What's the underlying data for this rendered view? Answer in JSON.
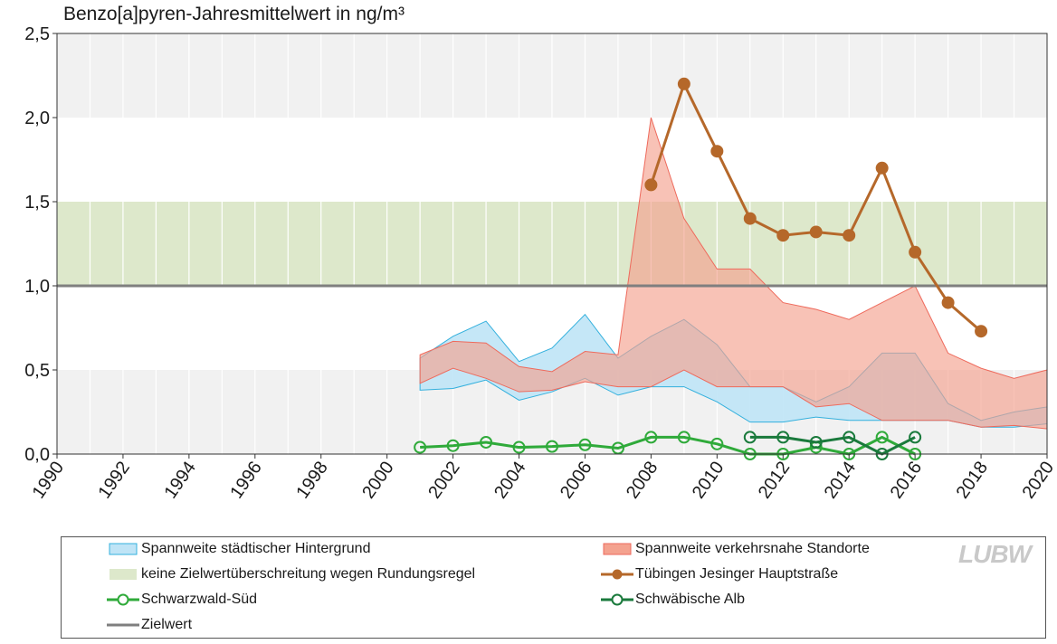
{
  "chart_data": {
    "type": "line",
    "title": "Benzo[a]pyren-Jahresmittelwert in ng/m³",
    "ylim": [
      0,
      2.5
    ],
    "xlim": [
      1990,
      2020
    ],
    "y_ticks": [
      "0,0",
      "0,5",
      "1,0",
      "1,5",
      "2,0",
      "2,5"
    ],
    "x_ticks": [
      "1990",
      "1992",
      "1994",
      "1996",
      "1998",
      "2000",
      "2002",
      "2004",
      "2006",
      "2008",
      "2010",
      "2012",
      "2014",
      "2016",
      "2018",
      "2020"
    ],
    "background_bands": [
      {
        "from": 0.0,
        "to": 0.5,
        "color": "#f1f1f1"
      },
      {
        "from": 1.0,
        "to": 1.5,
        "color": "#dde8cb"
      },
      {
        "from": 2.0,
        "to": 2.5,
        "color": "#f1f1f1"
      }
    ],
    "grid": "vertical",
    "target_value": 1.0,
    "ranges": [
      {
        "name": "Spannweite städtischer Hintergrund",
        "fill": "#bfe4f6",
        "stroke": "#33b0dd",
        "x": [
          2001,
          2002,
          2003,
          2004,
          2005,
          2006,
          2007,
          2008,
          2009,
          2010,
          2011,
          2012,
          2013,
          2014,
          2015,
          2016,
          2017,
          2018,
          2019,
          2020
        ],
        "low": [
          0.38,
          0.39,
          0.44,
          0.32,
          0.37,
          0.45,
          0.35,
          0.4,
          0.4,
          0.31,
          0.19,
          0.19,
          0.22,
          0.2,
          0.2,
          0.2,
          0.2,
          0.16,
          0.16,
          0.18
        ],
        "high": [
          0.57,
          0.7,
          0.79,
          0.55,
          0.63,
          0.83,
          0.57,
          0.7,
          0.8,
          0.65,
          0.4,
          0.4,
          0.31,
          0.4,
          0.6,
          0.6,
          0.3,
          0.2,
          0.25,
          0.28
        ]
      },
      {
        "name": "Spannweite verkehrsnahe Standorte",
        "fill": "#f4a28f",
        "stroke": "#ee6a5c",
        "x": [
          2001,
          2002,
          2003,
          2004,
          2005,
          2006,
          2007,
          2008,
          2009,
          2010,
          2011,
          2012,
          2013,
          2014,
          2015,
          2016,
          2017,
          2018,
          2019,
          2020
        ],
        "low": [
          0.42,
          0.51,
          0.45,
          0.37,
          0.38,
          0.43,
          0.4,
          0.4,
          0.5,
          0.4,
          0.4,
          0.4,
          0.28,
          0.3,
          0.2,
          0.2,
          0.2,
          0.16,
          0.17,
          0.15
        ],
        "high": [
          0.59,
          0.67,
          0.66,
          0.52,
          0.49,
          0.61,
          0.59,
          2.0,
          1.4,
          1.1,
          1.1,
          0.9,
          0.86,
          0.8,
          0.9,
          1.0,
          0.6,
          0.51,
          0.45,
          0.5
        ]
      }
    ],
    "series": [
      {
        "name": "Tübingen Jesinger Hauptstraße",
        "color": "#b5682a",
        "marker": "filled",
        "x": [
          2008,
          2009,
          2010,
          2011,
          2012,
          2013,
          2014,
          2015,
          2016,
          2017,
          2018
        ],
        "values": [
          1.6,
          2.2,
          1.8,
          1.4,
          1.3,
          1.32,
          1.3,
          1.7,
          1.2,
          0.9,
          0.73
        ]
      },
      {
        "name": "Schwarzwald-Süd",
        "color": "#2faa3a",
        "marker": "open",
        "x": [
          2001,
          2002,
          2003,
          2004,
          2005,
          2006,
          2007,
          2008,
          2009,
          2010,
          2011,
          2012,
          2013,
          2014,
          2015,
          2016
        ],
        "values": [
          0.04,
          0.05,
          0.07,
          0.04,
          0.045,
          0.055,
          0.035,
          0.1,
          0.1,
          0.06,
          0.0,
          0.0,
          0.04,
          0.0,
          0.1,
          0.0
        ]
      },
      {
        "name": "Schwäbische Alb",
        "color": "#1a7a3c",
        "marker": "open",
        "x": [
          2011,
          2012,
          2013,
          2014,
          2015,
          2016
        ],
        "values": [
          0.1,
          0.1,
          0.07,
          0.1,
          0.0,
          0.1
        ]
      }
    ]
  },
  "legend": {
    "items": [
      {
        "label": "Spannweite städtischer Hintergrund",
        "kind": "area",
        "fill": "#bfe4f6",
        "stroke": "#33b0dd"
      },
      {
        "label": "Spannweite verkehrsnahe Standorte",
        "kind": "area",
        "fill": "#f4a28f",
        "stroke": "#ee6a5c"
      },
      {
        "label": "keine Zielwertüberschreitung wegen Rundungsregel",
        "kind": "band",
        "fill": "#dde8cb"
      },
      {
        "label": "Tübingen Jesinger Hauptstraße",
        "kind": "line-filled",
        "color": "#b5682a"
      },
      {
        "label": "Schwarzwald-Süd",
        "kind": "line-open",
        "color": "#2faa3a"
      },
      {
        "label": "Schwäbische Alb",
        "kind": "line-open",
        "color": "#1a7a3c"
      },
      {
        "label": "Zielwert",
        "kind": "line",
        "color": "#7f7f7f"
      }
    ],
    "logo_text": "LUBW"
  }
}
